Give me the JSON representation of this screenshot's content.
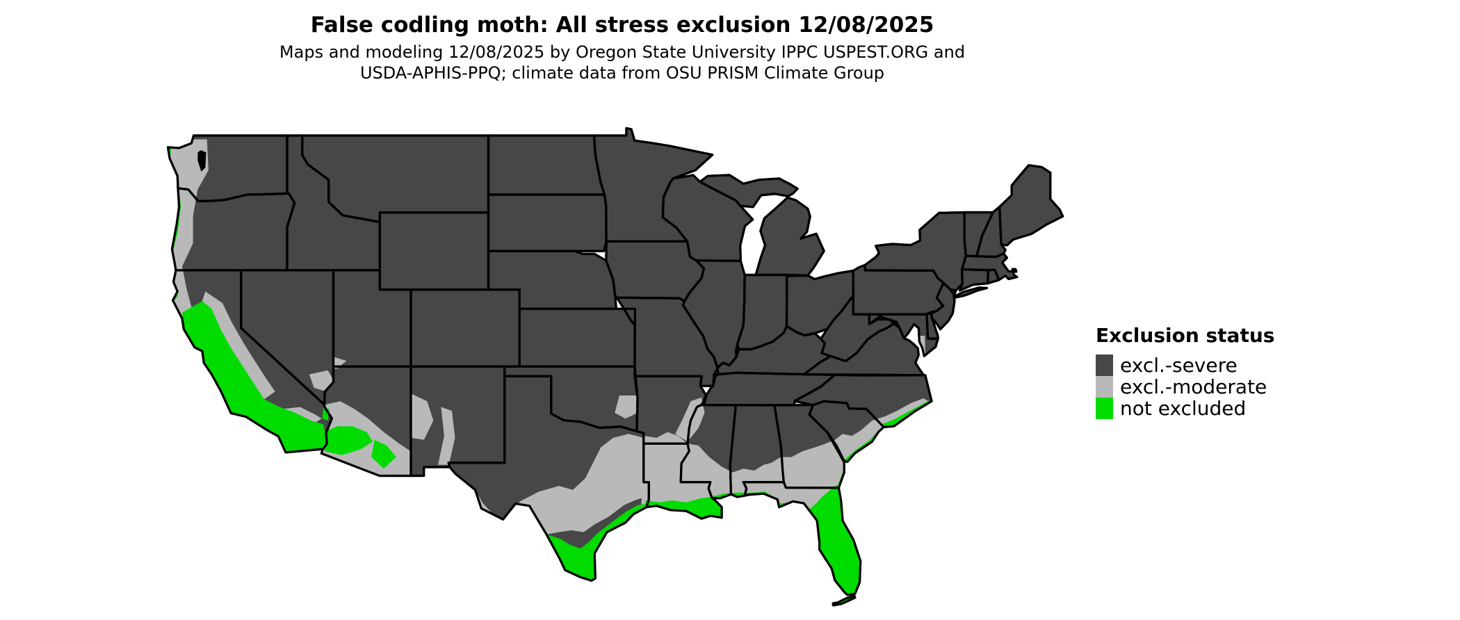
{
  "title": "False codling moth: All stress exclusion 12/08/2025",
  "subtitle_line1": "Maps and modeling 12/08/2025 by Oregon State University IPPC USPEST.ORG and",
  "subtitle_line2": "USDA-APHIS-PPQ; climate data from OSU PRISM Climate Group",
  "legend": {
    "title": "Exclusion status",
    "items": [
      {
        "label": "excl.-severe",
        "color": "#474747"
      },
      {
        "label": "excl.-moderate",
        "color": "#b9b9b9"
      },
      {
        "label": "not excluded",
        "color": "#00dc00"
      }
    ]
  },
  "map": {
    "region": "Continental United States",
    "colors": {
      "severe": "#474747",
      "moderate": "#b9b9b9",
      "not_excluded": "#00dc00",
      "border": "#000000",
      "water": "#000000",
      "background": "#ffffff"
    }
  }
}
